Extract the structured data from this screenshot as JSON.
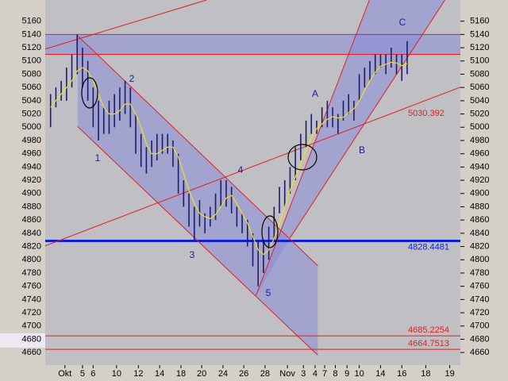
{
  "chart_data": {
    "type": "range-bar",
    "x": [
      1,
      2,
      3,
      4,
      5,
      6,
      7,
      8,
      9,
      10,
      11,
      12,
      13,
      14,
      15,
      16,
      17,
      18,
      19,
      20,
      21,
      22,
      23,
      24,
      25,
      26,
      27,
      28,
      29,
      30,
      31,
      32,
      33,
      34,
      35,
      36,
      37,
      38,
      39,
      40,
      41,
      42,
      43,
      44,
      45,
      46,
      47,
      48,
      49,
      50,
      51,
      52,
      53,
      54,
      55,
      56,
      57,
      58,
      59,
      60,
      61,
      62,
      63,
      64,
      65,
      66,
      67,
      68
    ],
    "bars": {
      "color": "#1c1c6c",
      "low": [
        5000,
        5030,
        5040,
        5040,
        5060,
        5080,
        5060,
        5040,
        5000,
        4980,
        4990,
        4990,
        5000,
        5010,
        5020,
        5000,
        4960,
        4940,
        4930,
        4940,
        4950,
        4960,
        4960,
        4940,
        4900,
        4880,
        4850,
        4830,
        4850,
        4840,
        4850,
        4860,
        4880,
        4880,
        4870,
        4850,
        4840,
        4820,
        4790,
        4760,
        4780,
        4800,
        4830,
        4870,
        4880,
        4900,
        4920,
        4950,
        4970,
        4990,
        4990,
        5000,
        5000,
        5000,
        4990,
        5010,
        5020,
        5010,
        5040,
        5060,
        5070,
        5080,
        5090,
        5080,
        5090,
        5080,
        5070,
        5080
      ],
      "high": [
        5050,
        5060,
        5070,
        5090,
        5110,
        5140,
        5120,
        5100,
        5060,
        5040,
        5030,
        5040,
        5050,
        5060,
        5070,
        5060,
        5020,
        4990,
        4970,
        4980,
        4990,
        4990,
        4990,
        4980,
        4960,
        4920,
        4900,
        4880,
        4890,
        4870,
        4880,
        4900,
        4920,
        4920,
        4910,
        4880,
        4870,
        4860,
        4840,
        4830,
        4830,
        4850,
        4880,
        4910,
        4920,
        4940,
        4970,
        4990,
        5010,
        5020,
        5010,
        5030,
        5040,
        5030,
        5020,
        5040,
        5050,
        5040,
        5080,
        5090,
        5100,
        5110,
        5110,
        5110,
        5120,
        5110,
        5110,
        5130
      ]
    },
    "moving_average": {
      "color": "#f0e020",
      "values": [
        5030,
        5040,
        5050,
        5060,
        5070,
        5085,
        5090,
        5085,
        5070,
        5050,
        5030,
        5020,
        5020,
        5025,
        5035,
        5035,
        5020,
        5000,
        4975,
        4960,
        4960,
        4965,
        4970,
        4970,
        4955,
        4930,
        4905,
        4885,
        4870,
        4865,
        4862,
        4868,
        4880,
        4893,
        4897,
        4885,
        4870,
        4855,
        4835,
        4815,
        4808,
        4815,
        4832,
        4855,
        4880,
        4905,
        4925,
        4945,
        4965,
        4985,
        4998,
        5005,
        5012,
        5016,
        5014,
        5015,
        5022,
        5028,
        5040,
        5055,
        5070,
        5083,
        5092,
        5095,
        5098,
        5097,
        5093,
        5096
      ]
    },
    "channels": [
      {
        "color": "#8a8ad8",
        "x": [
          6.1,
          51.2,
          51.2,
          6.1
        ],
        "y": [
          5138,
          4791,
          4656,
          5001
        ]
      },
      {
        "color": "#8a8ad8",
        "x": [
          39.6,
          60.9,
          75.1,
          46
        ],
        "y": [
          4746,
          5192,
          5192,
          4833
        ]
      },
      {
        "color": "#8a8ad8",
        "x": [
          0,
          78,
          78,
          0
        ],
        "y": [
          5140,
          5140,
          5110,
          5110
        ]
      }
    ],
    "trend_lines": [
      {
        "color": "#e02020",
        "x": [
          0,
          30.3
        ],
        "y": [
          5118,
          5192
        ]
      },
      {
        "color": "#e02020",
        "x": [
          6.1,
          51.2
        ],
        "y": [
          5138,
          4791
        ]
      },
      {
        "color": "#e02020",
        "x": [
          6.1,
          51.2
        ],
        "y": [
          5001,
          4656
        ]
      },
      {
        "color": "#e02020",
        "x": [
          0,
          78
        ],
        "y": [
          4821,
          5060.5
        ]
      },
      {
        "color": "#e02020",
        "x": [
          39.6,
          60.9
        ],
        "y": [
          4746,
          5192
        ]
      },
      {
        "color": "#e02020",
        "x": [
          46,
          75.1
        ],
        "y": [
          4833,
          5192
        ]
      }
    ],
    "horizontal_lines": [
      {
        "value": 5140,
        "color": "#e02020"
      },
      {
        "value": 5110,
        "color": "#e02020"
      },
      {
        "value": 4828.4481,
        "color": "#0a20e0",
        "labeled": true,
        "width": 3
      },
      {
        "value": 4685.2254,
        "color": "#e02020",
        "labeled": true
      },
      {
        "value": 4664.7513,
        "color": "#e02020",
        "labeled": true
      }
    ],
    "trend_label": {
      "value": 5030.392,
      "color": "#e02020"
    },
    "annotations": [
      "1",
      "2",
      "3",
      "4",
      "5",
      "A",
      "B",
      "C"
    ],
    "annotation_color": "#1a1aa0",
    "xlim": [
      0,
      78
    ],
    "ylim": [
      4641,
      5192
    ],
    "yticks": [
      4660,
      4680,
      4700,
      4720,
      4740,
      4760,
      4780,
      4800,
      4820,
      4840,
      4860,
      4880,
      4900,
      4920,
      4940,
      4960,
      4980,
      5000,
      5020,
      5040,
      5060,
      5080,
      5100,
      5120,
      5140,
      5160
    ],
    "xticks": [
      {
        "value": 3.7,
        "label": "Okt"
      },
      {
        "value": 7,
        "label": "5"
      },
      {
        "value": 9,
        "label": "6"
      },
      {
        "value": 13.4,
        "label": "10"
      },
      {
        "value": 17.5,
        "label": "12"
      },
      {
        "value": 21.5,
        "label": "14"
      },
      {
        "value": 25.5,
        "label": "18"
      },
      {
        "value": 29.4,
        "label": "20"
      },
      {
        "value": 33.4,
        "label": "24"
      },
      {
        "value": 37.3,
        "label": "26"
      },
      {
        "value": 41.3,
        "label": "28"
      },
      {
        "value": 45.5,
        "label": "Nov"
      },
      {
        "value": 48.5,
        "label": "3"
      },
      {
        "value": 50.7,
        "label": "4"
      },
      {
        "value": 52.5,
        "label": "7"
      },
      {
        "value": 54.5,
        "label": "8"
      },
      {
        "value": 56.7,
        "label": "9"
      },
      {
        "value": 59,
        "label": "10"
      },
      {
        "value": 63,
        "label": "14"
      },
      {
        "value": 67,
        "label": "16"
      },
      {
        "value": 71.5,
        "label": "18"
      },
      {
        "value": 76,
        "label": "19"
      }
    ]
  }
}
